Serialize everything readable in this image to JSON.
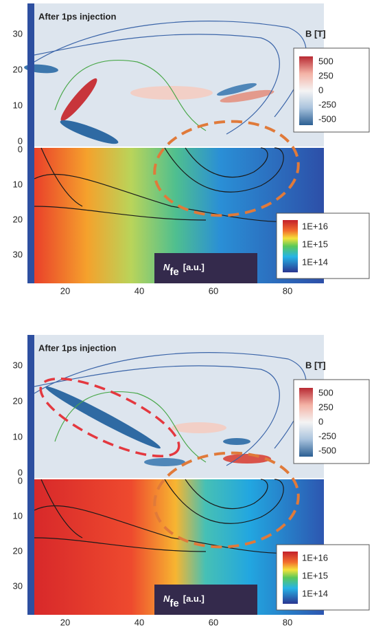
{
  "panels": [
    {
      "title": "After 1ps injection",
      "b_label": "B [T]",
      "b_legend": [
        "500",
        "250",
        "0",
        "-250",
        "-500"
      ],
      "n_label": {
        "symbol": "N",
        "subscript": "fe",
        "unit": "[a.u.]"
      },
      "n_legend": [
        "1E+16",
        "1E+15",
        "1E+14"
      ],
      "y_ticks_top": [
        "30",
        "20",
        "10",
        "0"
      ],
      "y_ticks_bottom": [
        "0",
        "10",
        "20",
        "30"
      ],
      "x_ticks": [
        "20",
        "40",
        "60",
        "80"
      ]
    },
    {
      "title": "After 1ps injection",
      "b_label": "B [T]",
      "b_legend": [
        "500",
        "250",
        "0",
        "-250",
        "-500"
      ],
      "n_label": {
        "symbol": "N",
        "subscript": "fe",
        "unit": "[a.u.]"
      },
      "n_legend": [
        "1E+16",
        "1E+15",
        "1E+14"
      ],
      "y_ticks_top": [
        "30",
        "20",
        "10",
        "0"
      ],
      "y_ticks_bottom": [
        "0",
        "10",
        "20",
        "30"
      ],
      "x_ticks": [
        "20",
        "40",
        "60",
        "80"
      ]
    }
  ]
}
